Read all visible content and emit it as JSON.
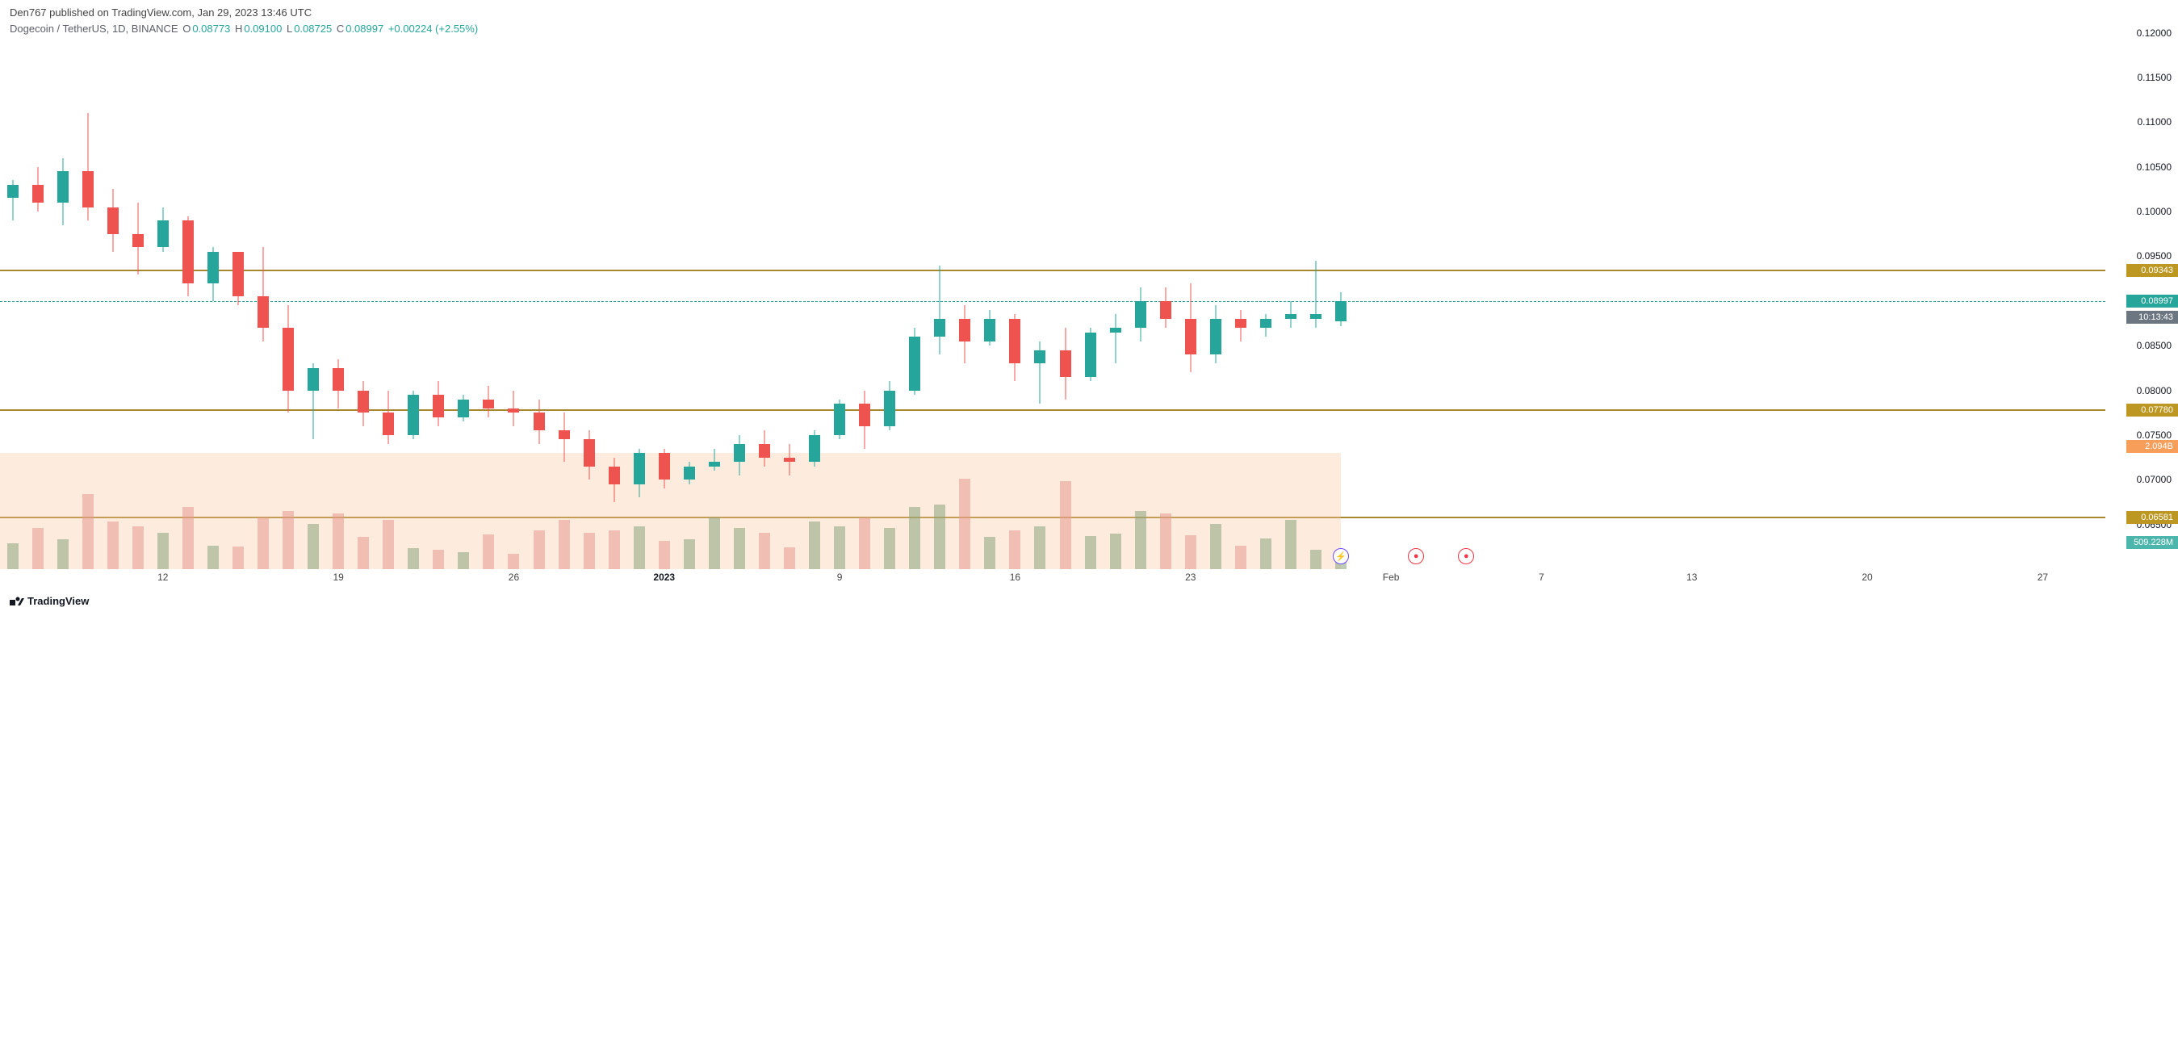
{
  "header": {
    "publish_line": "Den767 published on TradingView.com, Jan 29, 2023 13:46 UTC"
  },
  "ticker": {
    "name": "Dogecoin / TetherUS, 1D, BINANCE",
    "o_label": "O",
    "o": "0.08773",
    "h_label": "H",
    "h": "0.09100",
    "l_label": "L",
    "l": "0.08725",
    "c_label": "C",
    "c": "0.08997",
    "change": "+0.00224 (+2.55%)"
  },
  "logo_text": "TradingView",
  "colors": {
    "up": "#26a69a",
    "down": "#ef5350",
    "vol_up": "#8aa47a",
    "vol_down": "#e8998f",
    "hline": "#a8882f",
    "hline_label_bg": "#bc9822",
    "price_label_bg": "#26a69a",
    "vol_label_bg": "#f89e5b",
    "vol_last_bg": "#4db6ac",
    "vol_ma_fill": "#f9c8a0",
    "bg": "#ffffff"
  },
  "y_axis": {
    "min": 0.06,
    "max": 0.1215,
    "ticks": [
      {
        "v": 0.12,
        "t": "0.12000"
      },
      {
        "v": 0.115,
        "t": "0.11500"
      },
      {
        "v": 0.11,
        "t": "0.11000"
      },
      {
        "v": 0.105,
        "t": "0.10500"
      },
      {
        "v": 0.1,
        "t": "0.10000"
      },
      {
        "v": 0.095,
        "t": "0.09500"
      },
      {
        "v": 0.09,
        "t": "0.09000"
      },
      {
        "v": 0.085,
        "t": "0.08500"
      },
      {
        "v": 0.08,
        "t": "0.08000"
      },
      {
        "v": 0.075,
        "t": "0.07500"
      },
      {
        "v": 0.07,
        "t": "0.07000"
      },
      {
        "v": 0.065,
        "t": "0.06500"
      }
    ],
    "labels": [
      {
        "v": 0.09343,
        "t": "0.09343",
        "bg": "#bc9822"
      },
      {
        "v": 0.08997,
        "t": "0.08997",
        "bg": "#26a69a"
      },
      {
        "v": 0.0882,
        "t": "10:13:43",
        "bg": "#6b7680"
      },
      {
        "v": 0.0778,
        "t": "0.07780",
        "bg": "#bc9822"
      },
      {
        "v": 0.0737,
        "t": "2.094B",
        "bg": "#f89e5b"
      },
      {
        "v": 0.06581,
        "t": "0.06581",
        "bg": "#bc9822"
      },
      {
        "v": 0.063,
        "t": "509.228M",
        "bg": "#4db6ac"
      }
    ]
  },
  "x_axis": {
    "min": 0,
    "max": 62,
    "ticks": [
      {
        "i": 6,
        "t": "12"
      },
      {
        "i": 13,
        "t": "19"
      },
      {
        "i": 20,
        "t": "26"
      },
      {
        "i": 26,
        "t": "2023",
        "bold": true
      },
      {
        "i": 33,
        "t": "9"
      },
      {
        "i": 40,
        "t": "16"
      },
      {
        "i": 47,
        "t": "23"
      },
      {
        "i": 55,
        "t": "Feb"
      },
      {
        "i": 61,
        "t": "7"
      },
      {
        "i": 67,
        "t": "13"
      },
      {
        "i": 74,
        "t": "20"
      },
      {
        "i": 81,
        "t": "27"
      }
    ],
    "display_max": 84
  },
  "hlines": [
    0.09343,
    0.0778,
    0.06581
  ],
  "dashline": 0.08997,
  "vol_max": 3.0,
  "vol_ma_top": 0.073,
  "candles": [
    {
      "i": 0,
      "o": 0.1015,
      "h": 0.1035,
      "l": 0.099,
      "c": 0.103,
      "v": 0.6,
      "dir": "up"
    },
    {
      "i": 1,
      "o": 0.103,
      "h": 0.105,
      "l": 0.1,
      "c": 0.101,
      "v": 0.95,
      "dir": "down"
    },
    {
      "i": 2,
      "o": 0.101,
      "h": 0.106,
      "l": 0.0985,
      "c": 0.1045,
      "v": 0.7,
      "dir": "up"
    },
    {
      "i": 3,
      "o": 0.1045,
      "h": 0.111,
      "l": 0.099,
      "c": 0.1005,
      "v": 1.75,
      "dir": "down"
    },
    {
      "i": 4,
      "o": 0.1005,
      "h": 0.1025,
      "l": 0.0955,
      "c": 0.0975,
      "v": 1.1,
      "dir": "down"
    },
    {
      "i": 5,
      "o": 0.0975,
      "h": 0.101,
      "l": 0.093,
      "c": 0.096,
      "v": 1.0,
      "dir": "down"
    },
    {
      "i": 6,
      "o": 0.096,
      "h": 0.1005,
      "l": 0.0955,
      "c": 0.099,
      "v": 0.85,
      "dir": "up"
    },
    {
      "i": 7,
      "o": 0.099,
      "h": 0.0995,
      "l": 0.0905,
      "c": 0.092,
      "v": 1.45,
      "dir": "down"
    },
    {
      "i": 8,
      "o": 0.092,
      "h": 0.096,
      "l": 0.09,
      "c": 0.0955,
      "v": 0.55,
      "dir": "up"
    },
    {
      "i": 9,
      "o": 0.0955,
      "h": 0.0955,
      "l": 0.0895,
      "c": 0.0905,
      "v": 0.52,
      "dir": "down"
    },
    {
      "i": 10,
      "o": 0.0905,
      "h": 0.096,
      "l": 0.0855,
      "c": 0.087,
      "v": 1.2,
      "dir": "down"
    },
    {
      "i": 11,
      "o": 0.087,
      "h": 0.0895,
      "l": 0.0775,
      "c": 0.08,
      "v": 1.35,
      "dir": "down"
    },
    {
      "i": 12,
      "o": 0.08,
      "h": 0.083,
      "l": 0.0745,
      "c": 0.0825,
      "v": 1.05,
      "dir": "up"
    },
    {
      "i": 13,
      "o": 0.0825,
      "h": 0.0835,
      "l": 0.078,
      "c": 0.08,
      "v": 1.3,
      "dir": "down"
    },
    {
      "i": 14,
      "o": 0.08,
      "h": 0.081,
      "l": 0.076,
      "c": 0.0775,
      "v": 0.75,
      "dir": "down"
    },
    {
      "i": 15,
      "o": 0.0775,
      "h": 0.08,
      "l": 0.074,
      "c": 0.075,
      "v": 1.15,
      "dir": "down"
    },
    {
      "i": 16,
      "o": 0.075,
      "h": 0.08,
      "l": 0.0745,
      "c": 0.0795,
      "v": 0.48,
      "dir": "up"
    },
    {
      "i": 17,
      "o": 0.0795,
      "h": 0.081,
      "l": 0.076,
      "c": 0.077,
      "v": 0.45,
      "dir": "down"
    },
    {
      "i": 18,
      "o": 0.077,
      "h": 0.0795,
      "l": 0.0765,
      "c": 0.079,
      "v": 0.4,
      "dir": "up"
    },
    {
      "i": 19,
      "o": 0.079,
      "h": 0.0805,
      "l": 0.077,
      "c": 0.078,
      "v": 0.8,
      "dir": "down"
    },
    {
      "i": 20,
      "o": 0.078,
      "h": 0.08,
      "l": 0.076,
      "c": 0.0775,
      "v": 0.35,
      "dir": "down"
    },
    {
      "i": 21,
      "o": 0.0775,
      "h": 0.079,
      "l": 0.074,
      "c": 0.0755,
      "v": 0.9,
      "dir": "down"
    },
    {
      "i": 22,
      "o": 0.0755,
      "h": 0.0775,
      "l": 0.072,
      "c": 0.0745,
      "v": 1.15,
      "dir": "down"
    },
    {
      "i": 23,
      "o": 0.0745,
      "h": 0.0755,
      "l": 0.07,
      "c": 0.0715,
      "v": 0.85,
      "dir": "down"
    },
    {
      "i": 24,
      "o": 0.0715,
      "h": 0.0725,
      "l": 0.0675,
      "c": 0.0695,
      "v": 0.9,
      "dir": "down"
    },
    {
      "i": 25,
      "o": 0.0695,
      "h": 0.0735,
      "l": 0.068,
      "c": 0.073,
      "v": 1.0,
      "dir": "up"
    },
    {
      "i": 26,
      "o": 0.073,
      "h": 0.0735,
      "l": 0.069,
      "c": 0.07,
      "v": 0.65,
      "dir": "down"
    },
    {
      "i": 27,
      "o": 0.07,
      "h": 0.072,
      "l": 0.0695,
      "c": 0.0715,
      "v": 0.7,
      "dir": "up"
    },
    {
      "i": 28,
      "o": 0.0715,
      "h": 0.0735,
      "l": 0.071,
      "c": 0.072,
      "v": 1.2,
      "dir": "up"
    },
    {
      "i": 29,
      "o": 0.072,
      "h": 0.075,
      "l": 0.0705,
      "c": 0.074,
      "v": 0.95,
      "dir": "up"
    },
    {
      "i": 30,
      "o": 0.074,
      "h": 0.0755,
      "l": 0.0715,
      "c": 0.0725,
      "v": 0.85,
      "dir": "down"
    },
    {
      "i": 31,
      "o": 0.0725,
      "h": 0.074,
      "l": 0.0705,
      "c": 0.072,
      "v": 0.5,
      "dir": "down"
    },
    {
      "i": 32,
      "o": 0.072,
      "h": 0.0755,
      "l": 0.0715,
      "c": 0.075,
      "v": 1.1,
      "dir": "up"
    },
    {
      "i": 33,
      "o": 0.075,
      "h": 0.079,
      "l": 0.0745,
      "c": 0.0785,
      "v": 1.0,
      "dir": "up"
    },
    {
      "i": 34,
      "o": 0.0785,
      "h": 0.08,
      "l": 0.0735,
      "c": 0.076,
      "v": 1.2,
      "dir": "down"
    },
    {
      "i": 35,
      "o": 0.076,
      "h": 0.081,
      "l": 0.0755,
      "c": 0.08,
      "v": 0.95,
      "dir": "up"
    },
    {
      "i": 36,
      "o": 0.08,
      "h": 0.087,
      "l": 0.0795,
      "c": 0.086,
      "v": 1.45,
      "dir": "up"
    },
    {
      "i": 37,
      "o": 0.086,
      "h": 0.094,
      "l": 0.084,
      "c": 0.088,
      "v": 1.5,
      "dir": "up"
    },
    {
      "i": 38,
      "o": 0.088,
      "h": 0.0895,
      "l": 0.083,
      "c": 0.0855,
      "v": 2.1,
      "dir": "down"
    },
    {
      "i": 39,
      "o": 0.0855,
      "h": 0.089,
      "l": 0.085,
      "c": 0.088,
      "v": 0.75,
      "dir": "up"
    },
    {
      "i": 40,
      "o": 0.088,
      "h": 0.0885,
      "l": 0.081,
      "c": 0.083,
      "v": 0.9,
      "dir": "down"
    },
    {
      "i": 41,
      "o": 0.083,
      "h": 0.0855,
      "l": 0.0785,
      "c": 0.0845,
      "v": 1.0,
      "dir": "up"
    },
    {
      "i": 42,
      "o": 0.0845,
      "h": 0.087,
      "l": 0.079,
      "c": 0.0815,
      "v": 2.05,
      "dir": "down"
    },
    {
      "i": 43,
      "o": 0.0815,
      "h": 0.087,
      "l": 0.081,
      "c": 0.0865,
      "v": 0.77,
      "dir": "up"
    },
    {
      "i": 44,
      "o": 0.0865,
      "h": 0.0885,
      "l": 0.083,
      "c": 0.087,
      "v": 0.82,
      "dir": "up"
    },
    {
      "i": 45,
      "o": 0.087,
      "h": 0.0915,
      "l": 0.0855,
      "c": 0.09,
      "v": 1.35,
      "dir": "up"
    },
    {
      "i": 46,
      "o": 0.09,
      "h": 0.0915,
      "l": 0.087,
      "c": 0.088,
      "v": 1.3,
      "dir": "down"
    },
    {
      "i": 47,
      "o": 0.088,
      "h": 0.092,
      "l": 0.082,
      "c": 0.084,
      "v": 0.78,
      "dir": "down"
    },
    {
      "i": 48,
      "o": 0.084,
      "h": 0.0895,
      "l": 0.083,
      "c": 0.088,
      "v": 1.05,
      "dir": "up"
    },
    {
      "i": 49,
      "o": 0.088,
      "h": 0.089,
      "l": 0.0855,
      "c": 0.087,
      "v": 0.55,
      "dir": "down"
    },
    {
      "i": 50,
      "o": 0.087,
      "h": 0.0885,
      "l": 0.086,
      "c": 0.088,
      "v": 0.72,
      "dir": "up"
    },
    {
      "i": 51,
      "o": 0.088,
      "h": 0.09,
      "l": 0.087,
      "c": 0.0885,
      "v": 1.15,
      "dir": "up"
    },
    {
      "i": 52,
      "o": 0.088,
      "h": 0.0945,
      "l": 0.087,
      "c": 0.0885,
      "v": 0.45,
      "dir": "up"
    },
    {
      "i": 53,
      "o": 0.0877,
      "h": 0.091,
      "l": 0.0872,
      "c": 0.09,
      "v": 0.3,
      "dir": "up"
    }
  ],
  "events": [
    {
      "i": 53,
      "color": "#6b48ff",
      "glyph": "⚡"
    },
    {
      "i": 56,
      "color": "#f23645",
      "glyph": "●"
    },
    {
      "i": 58,
      "color": "#f23645",
      "glyph": "●"
    }
  ]
}
